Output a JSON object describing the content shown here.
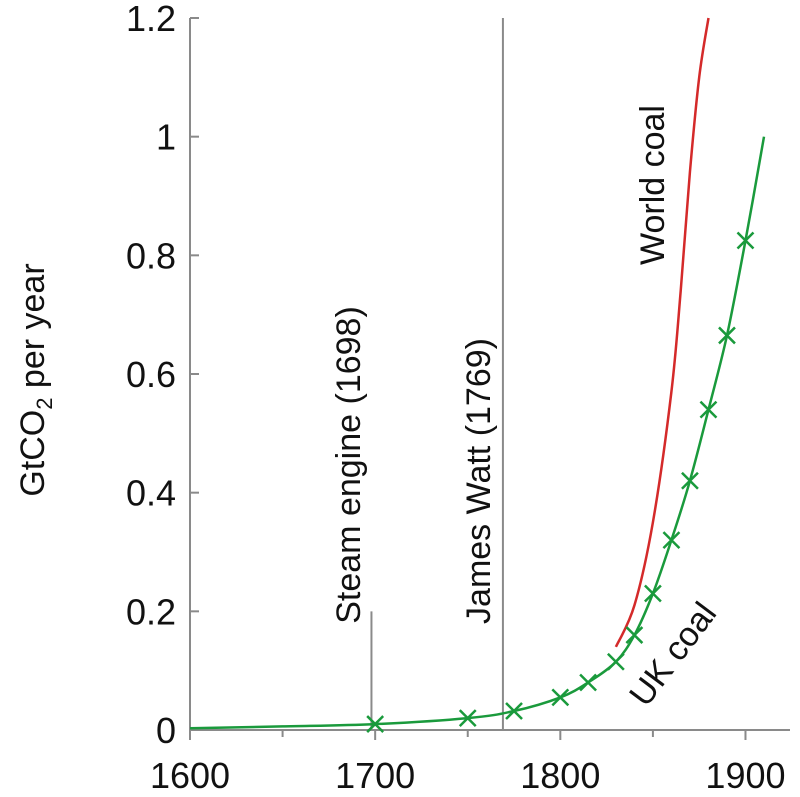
{
  "chart_data": {
    "type": "line",
    "title": "",
    "xlabel": "",
    "ylabel": "GtCO",
    "ylabel_subscript": "2",
    "ylabel_suffix": " per year",
    "xlim": [
      1600,
      1910
    ],
    "ylim": [
      0,
      1.2
    ],
    "x_ticks": [
      1600,
      1700,
      1800,
      1900
    ],
    "y_ticks": [
      0,
      0.2,
      0.4,
      0.6,
      0.8,
      1,
      1.2
    ],
    "y_tick_labels": [
      "0",
      "0.2",
      "0.4",
      "0.6",
      "0.8",
      "1",
      "1.2"
    ],
    "grid": false,
    "series": [
      {
        "name": "World coal",
        "color": "#d42a2a",
        "x": [
          1830,
          1840,
          1850,
          1860,
          1865,
          1870,
          1875,
          1880
        ],
        "y": [
          0.14,
          0.21,
          0.35,
          0.57,
          0.74,
          0.94,
          1.1,
          1.2
        ]
      },
      {
        "name": "UK coal",
        "color": "#1a9a3c",
        "x": [
          1600,
          1650,
          1700,
          1750,
          1775,
          1800,
          1815,
          1830,
          1840,
          1850,
          1860,
          1870,
          1880,
          1890,
          1900,
          1910
        ],
        "y": [
          0.003,
          0.006,
          0.01,
          0.02,
          0.032,
          0.055,
          0.08,
          0.115,
          0.16,
          0.23,
          0.32,
          0.42,
          0.54,
          0.665,
          0.825,
          1.0
        ],
        "markers_x": [
          1700,
          1750,
          1775,
          1800,
          1815,
          1830,
          1840,
          1850,
          1860,
          1870,
          1880,
          1890,
          1900
        ],
        "markers_y": [
          0.01,
          0.02,
          0.032,
          0.055,
          0.08,
          0.115,
          0.16,
          0.23,
          0.32,
          0.42,
          0.54,
          0.665,
          0.825
        ]
      }
    ],
    "events": [
      {
        "label": "Steam engine (1698)",
        "year": 1698,
        "y_top": 0.2
      },
      {
        "label": "James Watt (1769)",
        "year": 1769,
        "y_top": 1.2
      }
    ],
    "series_labels": [
      {
        "text": "World coal",
        "color": "#d42a2a"
      },
      {
        "text": "UK coal",
        "color": "#1a9a3c"
      }
    ],
    "colors": {
      "axis": "#8a8a8a",
      "text": "#111111"
    }
  }
}
